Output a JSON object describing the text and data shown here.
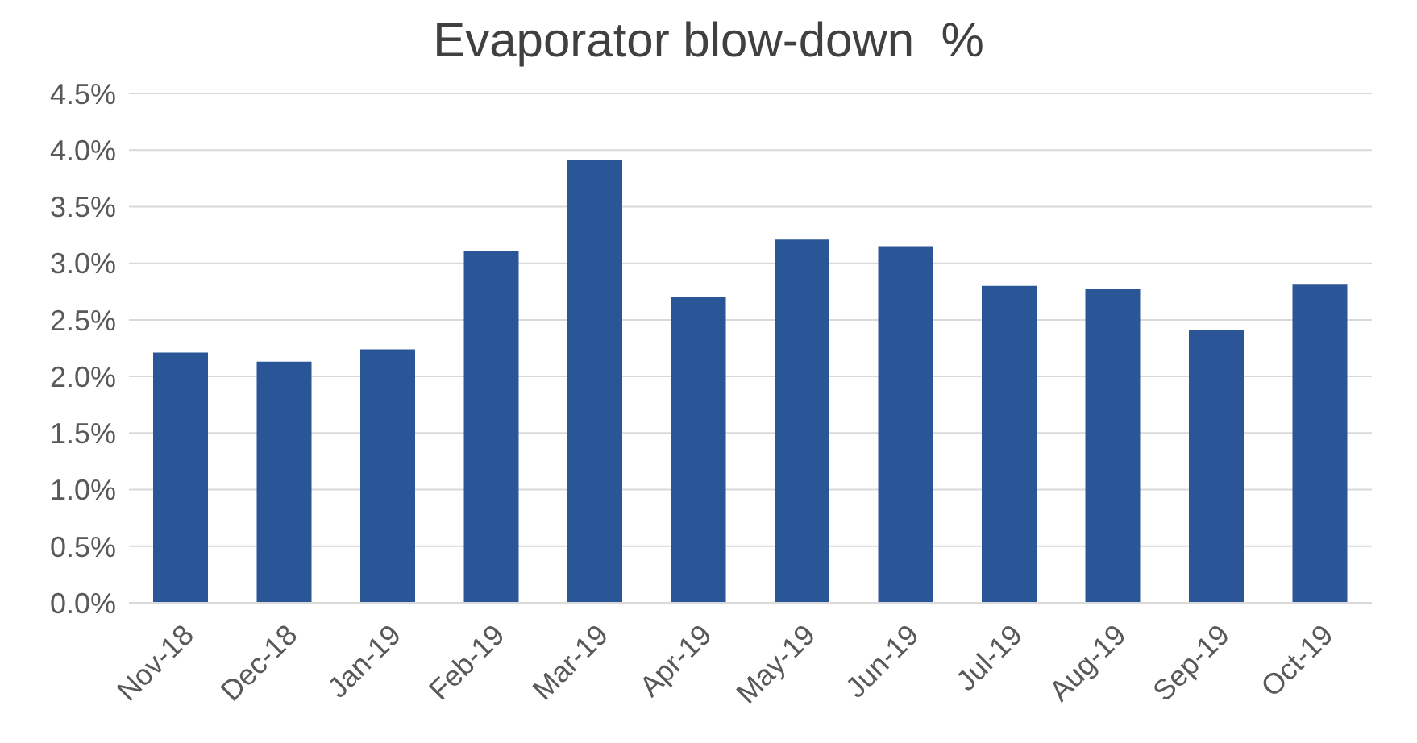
{
  "chart_data": {
    "type": "bar",
    "title": "Evaporator blow-down  %",
    "categories": [
      "Nov-18",
      "Dec-18",
      "Jan-19",
      "Feb-19",
      "Mar-19",
      "Apr-19",
      "May-19",
      "Jun-19",
      "Jul-19",
      "Aug-19",
      "Sep-19",
      "Oct-19"
    ],
    "values": [
      2.21,
      2.13,
      2.24,
      3.11,
      3.91,
      2.7,
      3.21,
      3.15,
      2.8,
      2.77,
      2.41,
      2.81
    ],
    "color": "#2a5597",
    "ylim": [
      0,
      4.5
    ],
    "yticks": [
      {
        "value": 0,
        "label": "0.0%"
      },
      {
        "value": 0.5,
        "label": "0.5%"
      },
      {
        "value": 1,
        "label": "1.0%"
      },
      {
        "value": 1.5,
        "label": "1.5%"
      },
      {
        "value": 2,
        "label": "2.0%"
      },
      {
        "value": 2.5,
        "label": "2.5%"
      },
      {
        "value": 3,
        "label": "3.0%"
      },
      {
        "value": 3.5,
        "label": "3.5%"
      },
      {
        "value": 4,
        "label": "4.0%"
      },
      {
        "value": 4.5,
        "label": "4.5%"
      }
    ],
    "grid": "y"
  }
}
